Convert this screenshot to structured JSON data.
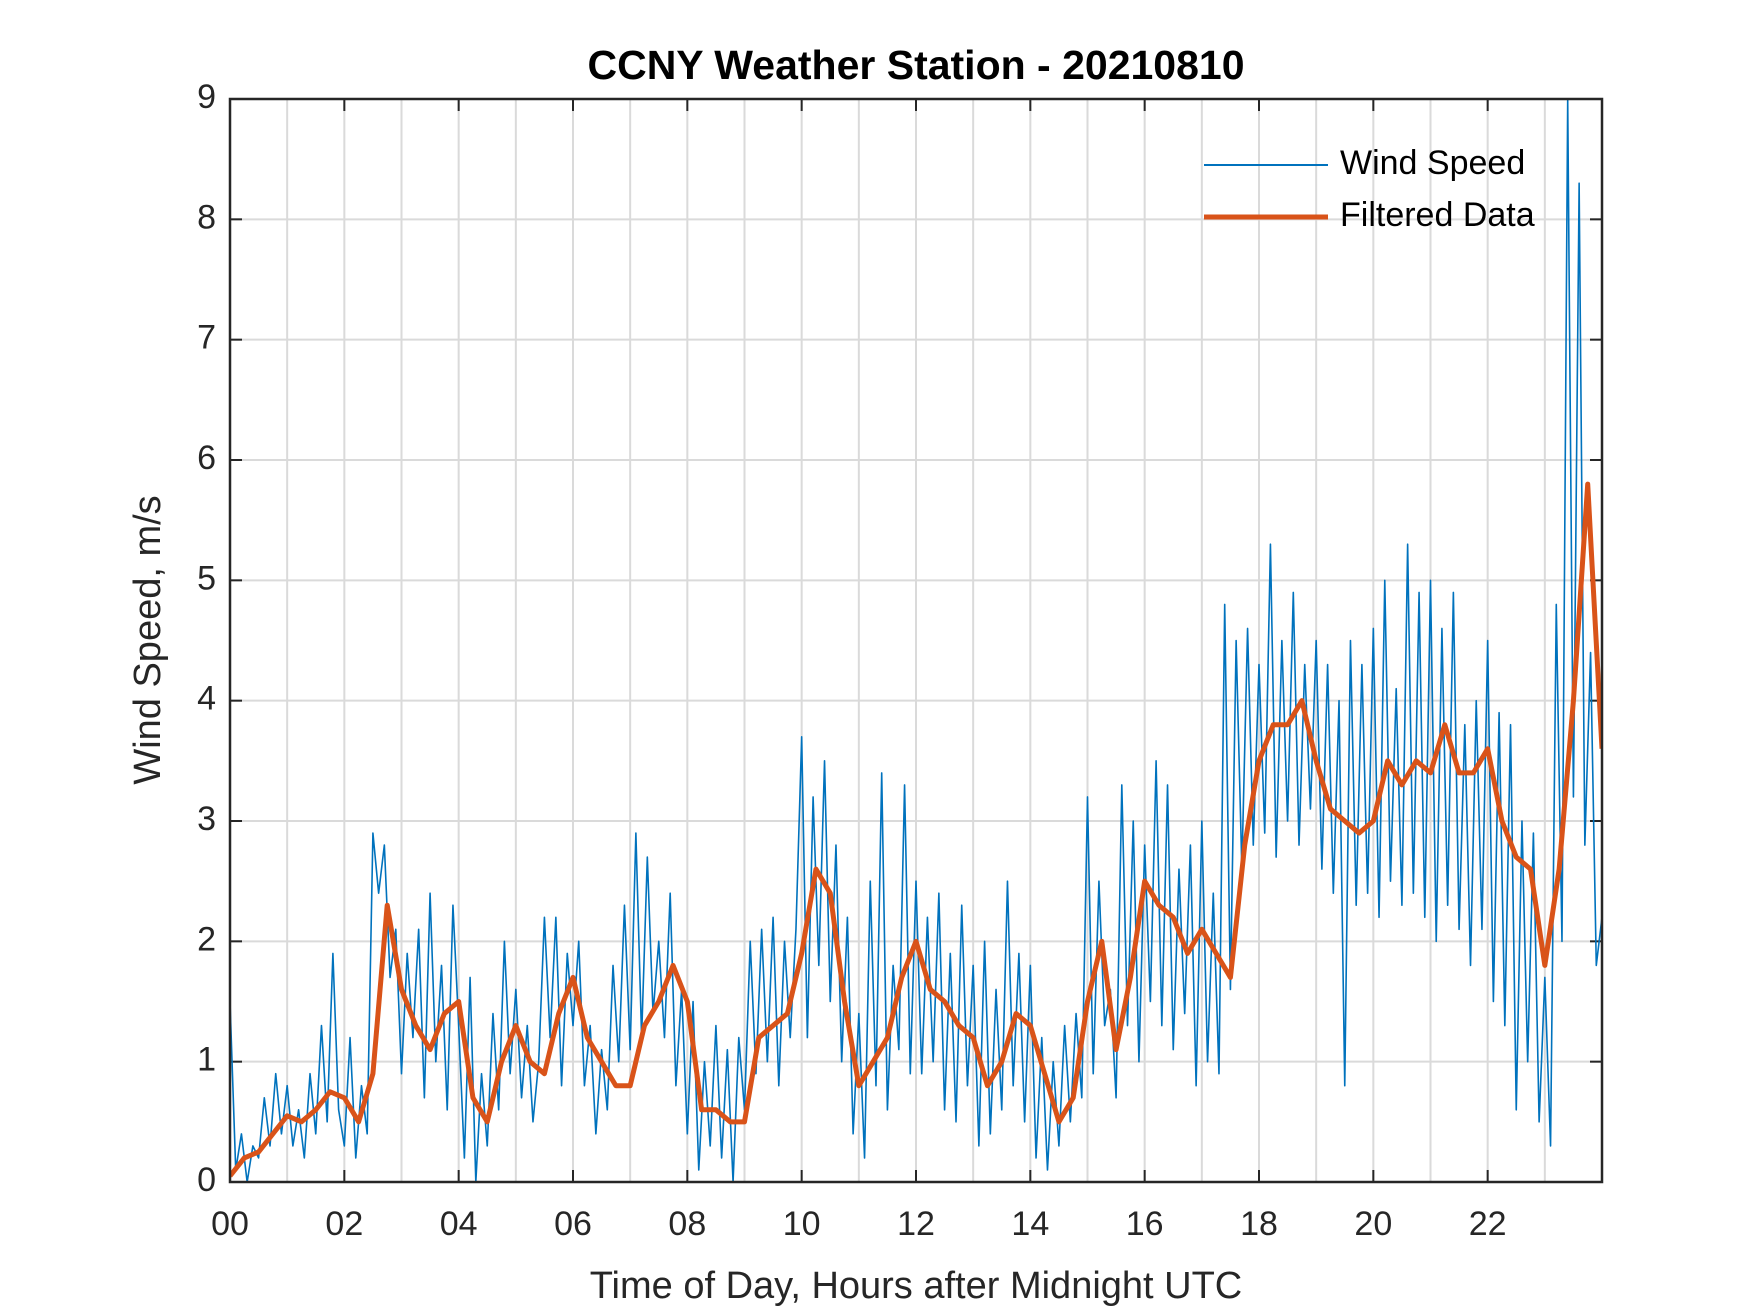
{
  "chart_data": {
    "type": "line",
    "title": "CCNY Weather Station - 20210810",
    "xlabel": "Time of Day, Hours after Midnight UTC",
    "ylabel": "Wind Speed, m/s",
    "xlim": [
      0,
      24
    ],
    "ylim": [
      0,
      9
    ],
    "xticks": [
      {
        "value": 0,
        "label": "00"
      },
      {
        "value": 2,
        "label": "02"
      },
      {
        "value": 4,
        "label": "04"
      },
      {
        "value": 6,
        "label": "06"
      },
      {
        "value": 8,
        "label": "08"
      },
      {
        "value": 10,
        "label": "10"
      },
      {
        "value": 12,
        "label": "12"
      },
      {
        "value": 14,
        "label": "14"
      },
      {
        "value": 16,
        "label": "16"
      },
      {
        "value": 18,
        "label": "18"
      },
      {
        "value": 20,
        "label": "20"
      },
      {
        "value": 22,
        "label": "22"
      }
    ],
    "xgrid_minor": [
      1,
      3,
      5,
      7,
      9,
      11,
      13,
      15,
      17,
      19,
      21,
      23
    ],
    "yticks": [
      0,
      1,
      2,
      3,
      4,
      5,
      6,
      7,
      8,
      9
    ],
    "grid": true,
    "legend": "upper right",
    "series": [
      {
        "name": "Wind Speed",
        "color": "#0072BD",
        "x": [
          0,
          0.1,
          0.2,
          0.3,
          0.4,
          0.5,
          0.6,
          0.7,
          0.8,
          0.9,
          1,
          1.1,
          1.2,
          1.3,
          1.4,
          1.5,
          1.6,
          1.7,
          1.8,
          1.9,
          2,
          2.1,
          2.2,
          2.3,
          2.4,
          2.5,
          2.6,
          2.7,
          2.8,
          2.9,
          3,
          3.1,
          3.2,
          3.3,
          3.4,
          3.5,
          3.6,
          3.7,
          3.8,
          3.9,
          4,
          4.1,
          4.2,
          4.3,
          4.4,
          4.5,
          4.6,
          4.7,
          4.8,
          4.9,
          5,
          5.1,
          5.2,
          5.3,
          5.4,
          5.5,
          5.6,
          5.7,
          5.8,
          5.9,
          6,
          6.1,
          6.2,
          6.3,
          6.4,
          6.5,
          6.6,
          6.7,
          6.8,
          6.9,
          7,
          7.1,
          7.2,
          7.3,
          7.4,
          7.5,
          7.6,
          7.7,
          7.8,
          7.9,
          8,
          8.1,
          8.2,
          8.3,
          8.4,
          8.5,
          8.6,
          8.7,
          8.8,
          8.9,
          9,
          9.1,
          9.2,
          9.3,
          9.4,
          9.5,
          9.6,
          9.7,
          9.8,
          9.9,
          10,
          10.1,
          10.2,
          10.3,
          10.4,
          10.5,
          10.6,
          10.7,
          10.8,
          10.9,
          11,
          11.1,
          11.2,
          11.3,
          11.4,
          11.5,
          11.6,
          11.7,
          11.8,
          11.9,
          12,
          12.1,
          12.2,
          12.3,
          12.4,
          12.5,
          12.6,
          12.7,
          12.8,
          12.9,
          13,
          13.1,
          13.2,
          13.3,
          13.4,
          13.5,
          13.6,
          13.7,
          13.8,
          13.9,
          14,
          14.1,
          14.2,
          14.3,
          14.4,
          14.5,
          14.6,
          14.7,
          14.8,
          14.9,
          15,
          15.1,
          15.2,
          15.3,
          15.4,
          15.5,
          15.6,
          15.7,
          15.8,
          15.9,
          16,
          16.1,
          16.2,
          16.3,
          16.4,
          16.5,
          16.6,
          16.7,
          16.8,
          16.9,
          17,
          17.1,
          17.2,
          17.3,
          17.4,
          17.5,
          17.6,
          17.7,
          17.8,
          17.9,
          18,
          18.1,
          18.2,
          18.3,
          18.4,
          18.5,
          18.6,
          18.7,
          18.8,
          18.9,
          19,
          19.1,
          19.2,
          19.3,
          19.4,
          19.5,
          19.6,
          19.7,
          19.8,
          19.9,
          20,
          20.1,
          20.2,
          20.3,
          20.4,
          20.5,
          20.6,
          20.7,
          20.8,
          20.9,
          21,
          21.1,
          21.2,
          21.3,
          21.4,
          21.5,
          21.6,
          21.7,
          21.8,
          21.9,
          22,
          22.1,
          22.2,
          22.3,
          22.4,
          22.5,
          22.6,
          22.7,
          22.8,
          22.9,
          23,
          23.1,
          23.2,
          23.3,
          23.4,
          23.5,
          23.6,
          23.7,
          23.8,
          23.9,
          24
        ],
        "values": [
          1.5,
          0.1,
          0.4,
          0.0,
          0.3,
          0.2,
          0.7,
          0.3,
          0.9,
          0.4,
          0.8,
          0.3,
          0.6,
          0.2,
          0.9,
          0.4,
          1.3,
          0.5,
          1.9,
          0.6,
          0.3,
          1.2,
          0.2,
          0.8,
          0.4,
          2.9,
          2.4,
          2.8,
          1.7,
          2.1,
          0.9,
          1.9,
          1.2,
          2.1,
          0.7,
          2.4,
          1.0,
          1.8,
          0.6,
          2.3,
          1.3,
          0.2,
          1.7,
          0.0,
          0.9,
          0.3,
          1.4,
          0.6,
          2.0,
          0.9,
          1.6,
          0.7,
          1.3,
          0.5,
          1.0,
          2.2,
          1.2,
          2.2,
          0.8,
          1.9,
          1.3,
          2.0,
          0.8,
          1.3,
          0.4,
          1.1,
          0.6,
          1.8,
          1.0,
          2.3,
          1.1,
          2.9,
          1.2,
          2.7,
          1.4,
          2.0,
          1.2,
          2.4,
          0.8,
          1.6,
          0.4,
          1.5,
          0.1,
          1.0,
          0.3,
          1.3,
          0.2,
          1.1,
          0.0,
          1.2,
          0.6,
          2.0,
          0.9,
          2.1,
          1.0,
          2.2,
          0.8,
          2.0,
          1.2,
          2.1,
          3.7,
          1.2,
          3.2,
          1.8,
          3.5,
          1.5,
          2.8,
          1.0,
          2.2,
          0.4,
          1.4,
          0.2,
          2.5,
          0.8,
          3.4,
          0.6,
          1.8,
          1.1,
          3.3,
          0.9,
          2.5,
          0.9,
          2.2,
          1.0,
          2.4,
          0.6,
          1.9,
          0.5,
          2.3,
          0.8,
          1.8,
          0.3,
          2.0,
          0.4,
          1.6,
          0.6,
          2.5,
          0.8,
          1.9,
          0.5,
          1.8,
          0.2,
          1.2,
          0.1,
          1.0,
          0.3,
          1.3,
          0.5,
          1.4,
          0.7,
          3.2,
          0.9,
          2.5,
          1.3,
          1.6,
          0.7,
          3.3,
          1.3,
          3.0,
          1.0,
          2.8,
          1.5,
          3.5,
          1.3,
          3.3,
          1.1,
          2.6,
          1.4,
          2.8,
          0.8,
          3.0,
          1.0,
          2.4,
          0.9,
          4.8,
          1.6,
          4.5,
          2.6,
          4.6,
          2.8,
          4.3,
          2.9,
          5.3,
          2.7,
          4.5,
          3.0,
          4.9,
          2.8,
          4.3,
          3.1,
          4.5,
          2.6,
          4.3,
          2.4,
          4.0,
          0.8,
          4.5,
          2.3,
          4.3,
          2.4,
          4.6,
          2.2,
          5.0,
          2.5,
          4.1,
          2.3,
          5.3,
          2.4,
          4.9,
          2.2,
          5.0,
          2.0,
          4.6,
          2.3,
          4.9,
          2.1,
          3.8,
          1.8,
          4.0,
          2.1,
          4.5,
          1.5,
          3.9,
          1.3,
          3.8,
          0.6,
          3.0,
          1.0,
          2.9,
          0.5,
          1.7,
          0.3,
          4.8,
          2.0,
          9.0,
          3.2,
          8.3,
          2.8,
          4.4,
          1.8,
          2.2
        ]
      },
      {
        "name": "Filtered Data",
        "color": "#D95319",
        "x": [
          0,
          0.25,
          0.5,
          0.75,
          1,
          1.25,
          1.5,
          1.75,
          2,
          2.25,
          2.5,
          2.75,
          3,
          3.25,
          3.5,
          3.75,
          4,
          4.25,
          4.5,
          4.75,
          5,
          5.25,
          5.5,
          5.75,
          6,
          6.25,
          6.5,
          6.75,
          7,
          7.25,
          7.5,
          7.75,
          8,
          8.25,
          8.5,
          8.75,
          9,
          9.25,
          9.5,
          9.75,
          10,
          10.25,
          10.5,
          10.75,
          11,
          11.25,
          11.5,
          11.75,
          12,
          12.25,
          12.5,
          12.75,
          13,
          13.25,
          13.5,
          13.75,
          14,
          14.25,
          14.5,
          14.75,
          15,
          15.25,
          15.5,
          15.75,
          16,
          16.25,
          16.5,
          16.75,
          17,
          17.25,
          17.5,
          17.75,
          18,
          18.25,
          18.5,
          18.75,
          19,
          19.25,
          19.5,
          19.75,
          20,
          20.25,
          20.5,
          20.75,
          21,
          21.25,
          21.5,
          21.75,
          22,
          22.25,
          22.5,
          22.75,
          23,
          23.25,
          23.5,
          23.75,
          24
        ],
        "values": [
          0.05,
          0.2,
          0.25,
          0.4,
          0.55,
          0.5,
          0.6,
          0.75,
          0.7,
          0.5,
          0.9,
          2.3,
          1.6,
          1.3,
          1.1,
          1.4,
          1.5,
          0.7,
          0.5,
          1.0,
          1.3,
          1.0,
          0.9,
          1.4,
          1.7,
          1.2,
          1.0,
          0.8,
          0.8,
          1.3,
          1.5,
          1.8,
          1.5,
          0.6,
          0.6,
          0.5,
          0.5,
          1.2,
          1.3,
          1.4,
          1.9,
          2.6,
          2.4,
          1.5,
          0.8,
          1.0,
          1.2,
          1.7,
          2.0,
          1.6,
          1.5,
          1.3,
          1.2,
          0.8,
          1.0,
          1.4,
          1.3,
          0.9,
          0.5,
          0.7,
          1.5,
          2.0,
          1.1,
          1.7,
          2.5,
          2.3,
          2.2,
          1.9,
          2.1,
          1.9,
          1.7,
          2.8,
          3.5,
          3.8,
          3.8,
          4.0,
          3.5,
          3.1,
          3.0,
          2.9,
          3.0,
          3.5,
          3.3,
          3.5,
          3.4,
          3.8,
          3.4,
          3.4,
          3.6,
          3.0,
          2.7,
          2.6,
          1.8,
          2.6,
          4.0,
          5.8,
          3.6
        ]
      }
    ]
  }
}
